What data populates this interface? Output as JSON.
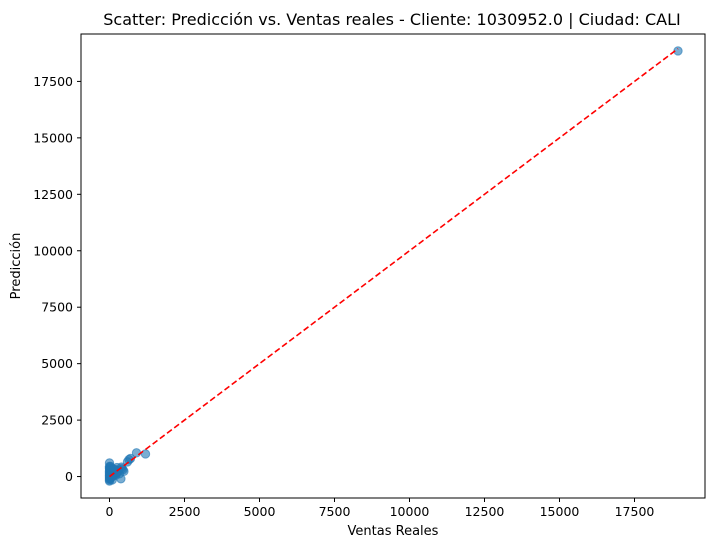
{
  "chart_data": {
    "type": "scatter",
    "title": "Scatter: Predicción vs. Ventas reales - Cliente: 1030952.0 | Ciudad: CALI",
    "xlabel": "Ventas Reales",
    "ylabel": "Predicción",
    "xlim": [
      -950,
      19850
    ],
    "ylim": [
      -950,
      19600
    ],
    "xticks": [
      0,
      2500,
      5000,
      7500,
      10000,
      12500,
      15000,
      17500
    ],
    "xtick_labels": [
      "0",
      "2500",
      "5000",
      "7500",
      "10000",
      "12500",
      "15000",
      "17500"
    ],
    "yticks": [
      0,
      2500,
      5000,
      7500,
      10000,
      12500,
      15000,
      17500
    ],
    "ytick_labels": [
      "0",
      "2500",
      "5000",
      "7500",
      "10000",
      "12500",
      "15000",
      "17500"
    ],
    "grid": false,
    "series": [
      {
        "color": "#1f77b4",
        "alpha": 0.6,
        "x": [
          18950,
          1200,
          900,
          700,
          650,
          600,
          450,
          420,
          400,
          380,
          300,
          250,
          220,
          200,
          180,
          150,
          120,
          100,
          80,
          60,
          50,
          40,
          30,
          20,
          10,
          5,
          0,
          0,
          0,
          0,
          0,
          0,
          0,
          0,
          0,
          0,
          0,
          0,
          0,
          0,
          15,
          35,
          55,
          90,
          130,
          160,
          210,
          260,
          330,
          480
        ],
        "y": [
          18850,
          1000,
          1050,
          800,
          750,
          650,
          300,
          350,
          420,
          -100,
          280,
          400,
          150,
          300,
          250,
          100,
          200,
          50,
          350,
          150,
          250,
          100,
          0,
          50,
          -50,
          300,
          600,
          450,
          350,
          250,
          150,
          50,
          -50,
          -100,
          -150,
          -200,
          200,
          100,
          0,
          400,
          -100,
          450,
          -50,
          -150,
          30,
          320,
          60,
          180,
          120,
          230
        ]
      }
    ],
    "reference_line": {
      "color": "#ff0000",
      "style": "dashed",
      "x": [
        0,
        18950
      ],
      "y": [
        0,
        18950
      ]
    }
  }
}
